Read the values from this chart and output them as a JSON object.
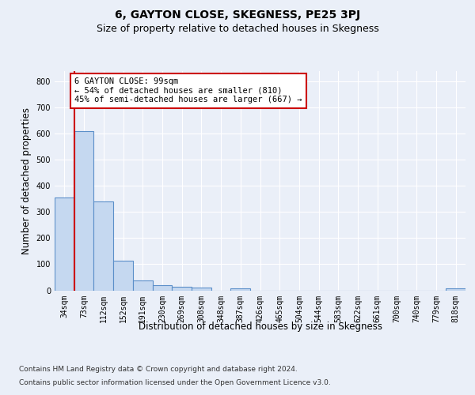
{
  "title": "6, GAYTON CLOSE, SKEGNESS, PE25 3PJ",
  "subtitle": "Size of property relative to detached houses in Skegness",
  "xlabel": "Distribution of detached houses by size in Skegness",
  "ylabel": "Number of detached properties",
  "footer_line1": "Contains HM Land Registry data © Crown copyright and database right 2024.",
  "footer_line2": "Contains public sector information licensed under the Open Government Licence v3.0.",
  "bar_labels": [
    "34sqm",
    "73sqm",
    "112sqm",
    "152sqm",
    "191sqm",
    "230sqm",
    "269sqm",
    "308sqm",
    "348sqm",
    "387sqm",
    "426sqm",
    "465sqm",
    "504sqm",
    "544sqm",
    "583sqm",
    "622sqm",
    "661sqm",
    "700sqm",
    "740sqm",
    "779sqm",
    "818sqm"
  ],
  "bar_values": [
    355,
    610,
    340,
    113,
    38,
    20,
    15,
    10,
    0,
    8,
    0,
    0,
    0,
    0,
    0,
    0,
    0,
    0,
    0,
    0,
    7
  ],
  "bar_color": "#c5d8f0",
  "bar_edge_color": "#5b8fc9",
  "bar_edge_width": 0.8,
  "vline_color": "#cc0000",
  "annotation_text": "6 GAYTON CLOSE: 99sqm\n← 54% of detached houses are smaller (810)\n45% of semi-detached houses are larger (667) →",
  "annotation_box_color": "#ffffff",
  "annotation_box_edge": "#cc0000",
  "ylim": [
    0,
    840
  ],
  "yticks": [
    0,
    100,
    200,
    300,
    400,
    500,
    600,
    700,
    800
  ],
  "bg_color": "#eaeff8",
  "plot_bg_color": "#eaeff8",
  "grid_color": "#ffffff",
  "title_fontsize": 10,
  "subtitle_fontsize": 9,
  "axis_label_fontsize": 8.5,
  "tick_fontsize": 7,
  "footer_fontsize": 6.5,
  "annotation_fontsize": 7.5
}
